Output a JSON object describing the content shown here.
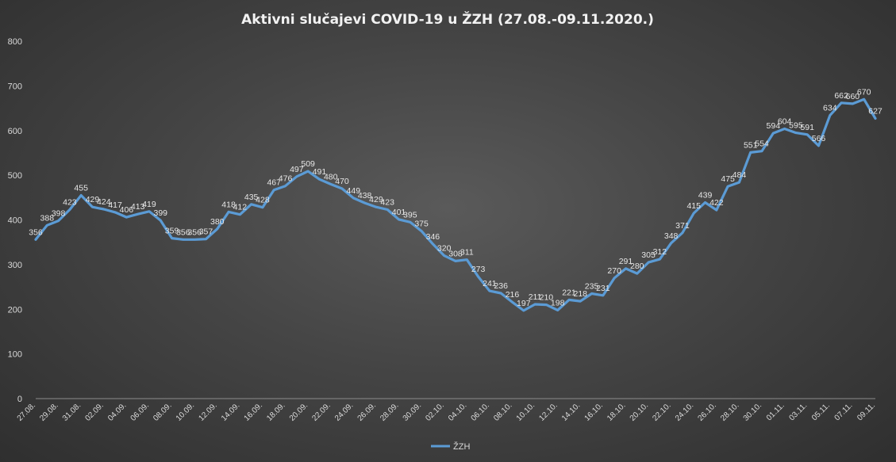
{
  "chart_data": {
    "type": "line",
    "title": "Aktivni  slučajevi  COVID-19  u ŽZH (27.08.-09.11.2020.)",
    "ylim": [
      0,
      800
    ],
    "yticks": [
      "0",
      "100",
      "200",
      "300",
      "400",
      "500",
      "600",
      "700",
      "800"
    ],
    "grid": false,
    "legend_position": "bottom",
    "line_color": "#5b9bd5",
    "xtick_labels": [
      "27.08.",
      "29.08.",
      "31.08.",
      "02.09.",
      "04.09.",
      "06.09.",
      "08.09.",
      "10.09.",
      "12.09.",
      "14.09.",
      "16.09.",
      "18.09.",
      "20.09.",
      "22.09.",
      "24.09.",
      "26.09.",
      "28.09.",
      "30.09.",
      "02.10.",
      "04.10.",
      "06.10.",
      "08.10.",
      "10.10.",
      "12.10.",
      "14.10.",
      "16.10.",
      "18.10.",
      "20.10.",
      "22.10.",
      "24.10.",
      "26.10.",
      "28.10.",
      "30.10.",
      "01.11.",
      "03.11.",
      "05.11.",
      "07.11.",
      "09.11."
    ],
    "series": [
      {
        "name": "ŽZH",
        "values": [
          356,
          388,
          398,
          423,
          455,
          429,
          424,
          417,
          406,
          413,
          419,
          399,
          359,
          356,
          356,
          357,
          380,
          418,
          412,
          435,
          428,
          467,
          476,
          497,
          509,
          491,
          480,
          470,
          449,
          438,
          429,
          423,
          401,
          395,
          375,
          346,
          320,
          308,
          311,
          273,
          241,
          236,
          216,
          197,
          211,
          210,
          198,
          221,
          218,
          235,
          231,
          270,
          291,
          280,
          305,
          312,
          348,
          371,
          415,
          439,
          422,
          475,
          484,
          551,
          554,
          594,
          604,
          595,
          591,
          566,
          634,
          662,
          660,
          670,
          627
        ]
      }
    ]
  }
}
